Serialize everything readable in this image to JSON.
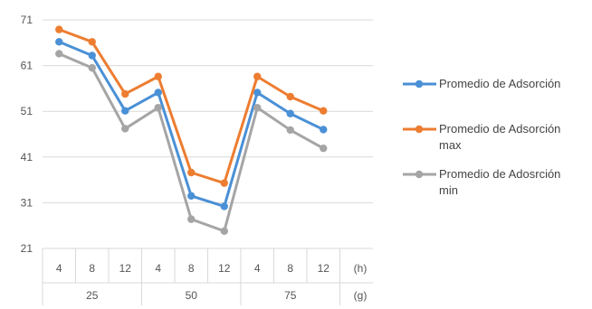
{
  "chart_data": {
    "type": "line",
    "y_ticks": [
      "71",
      "61",
      "51",
      "41",
      "31",
      "21"
    ],
    "ylim": [
      21,
      71
    ],
    "x_labels": [
      "4",
      "8",
      "12",
      "4",
      "8",
      "12",
      "4",
      "8",
      "12"
    ],
    "x_unit_label": "(h)",
    "group_labels": [
      "25",
      "50",
      "75"
    ],
    "group_unit_label": "(g)",
    "grid": true,
    "legend_position": "right",
    "series": [
      {
        "name": "Promedio de Adsorción",
        "name_lines": [
          "Promedio de Adsorción"
        ],
        "color": "#4a90d6",
        "values": [
          66.2,
          63.2,
          51.1,
          55.1,
          32.5,
          30.2,
          55.1,
          50.5,
          47.0
        ]
      },
      {
        "name": "Promedio de Adsorción max",
        "name_lines": [
          "Promedio de Adsorción",
          "max"
        ],
        "color": "#ed7d31",
        "values": [
          68.9,
          66.2,
          54.8,
          58.6,
          37.6,
          35.3,
          58.6,
          54.2,
          51.1
        ]
      },
      {
        "name": "Promedio de Adosrción min",
        "name_lines": [
          "Promedio de Adosrción",
          "min"
        ],
        "color": "#a5a5a5",
        "values": [
          63.6,
          60.5,
          47.2,
          51.8,
          27.4,
          24.8,
          51.8,
          46.9,
          42.9
        ]
      }
    ]
  }
}
